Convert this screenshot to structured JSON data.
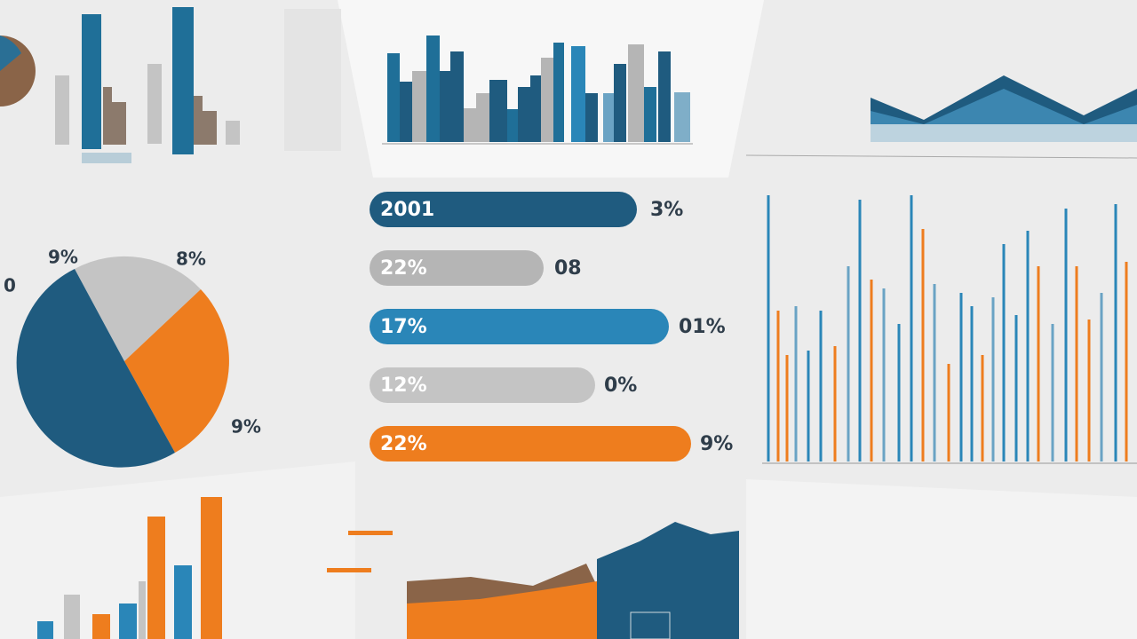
{
  "bar_rows": [
    {
      "inner": "2001",
      "outer": "3%"
    },
    {
      "inner": "22%",
      "outer": "08"
    },
    {
      "inner": "17%",
      "outer": "01%"
    },
    {
      "inner": "12%",
      "outer": "0%"
    },
    {
      "inner": "22%",
      "outer": "9%"
    }
  ],
  "pie_labels": [
    "9%",
    "8%",
    "0",
    "9%"
  ]
}
